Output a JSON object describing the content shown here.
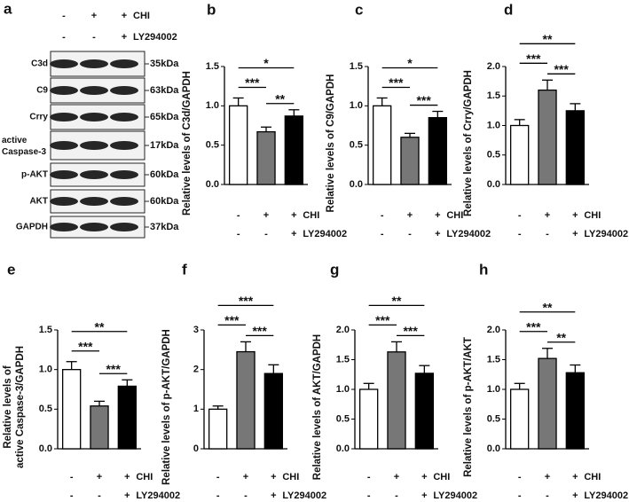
{
  "blot": {
    "letter": "a",
    "conditions": [
      {
        "name": "CHI",
        "signs": [
          "-",
          "+",
          "+"
        ]
      },
      {
        "name": "LY294002",
        "signs": [
          "-",
          "-",
          "+"
        ]
      }
    ],
    "bands": [
      {
        "label": "C3d",
        "size": "35kDa"
      },
      {
        "label": "C9",
        "size": "63kDa"
      },
      {
        "label": "Crry",
        "size": "65kDa"
      },
      {
        "label": "active Caspase-3",
        "size": "17kDa"
      },
      {
        "label": "p-AKT",
        "size": "60kDa"
      },
      {
        "label": "AKT",
        "size": "60kDa"
      },
      {
        "label": "GAPDH",
        "size": "37kDa"
      }
    ]
  },
  "chart_data": [
    {
      "type": "bar",
      "letter": "b",
      "ylabel": [
        "Relative levels of C3d/GAPDH"
      ],
      "values": [
        1.0,
        0.67,
        0.87
      ],
      "errors": [
        0.1,
        0.06,
        0.08
      ],
      "colors": [
        "#ffffff",
        "#777777",
        "#000000"
      ],
      "ylim": [
        0,
        1.5
      ],
      "yticks": [
        {
          "value": 0,
          "label": "0.0"
        },
        0.5,
        {
          "value": 1,
          "label": "1.0"
        },
        1.5
      ],
      "significance": [
        "*",
        "***",
        "**"
      ],
      "conditions": [
        {
          "name": "CHI",
          "signs": [
            "-",
            "+",
            "+"
          ]
        },
        {
          "name": "LY294002",
          "signs": [
            "-",
            "-",
            "+"
          ]
        }
      ]
    },
    {
      "type": "bar",
      "letter": "c",
      "ylabel": [
        "Relative levels of C9/GAPDH"
      ],
      "values": [
        1.0,
        0.6,
        0.85
      ],
      "errors": [
        0.1,
        0.05,
        0.08
      ],
      "colors": [
        "#ffffff",
        "#777777",
        "#000000"
      ],
      "ylim": [
        0,
        1.5
      ],
      "yticks": [
        {
          "value": 0,
          "label": "0.0"
        },
        0.5,
        {
          "value": 1,
          "label": "1.0"
        },
        1.5
      ],
      "significance": [
        "*",
        "***",
        "***"
      ],
      "conditions": [
        {
          "name": "CHI",
          "signs": [
            "-",
            "+",
            "+"
          ]
        },
        {
          "name": "LY294002",
          "signs": [
            "-",
            "-",
            "+"
          ]
        }
      ]
    },
    {
      "type": "bar",
      "letter": "d",
      "ylabel": [
        "Relative levels of Crry/GAPDH"
      ],
      "values": [
        1.0,
        1.6,
        1.25
      ],
      "errors": [
        0.1,
        0.17,
        0.12
      ],
      "colors": [
        "#ffffff",
        "#777777",
        "#000000"
      ],
      "ylim": [
        0,
        2
      ],
      "yticks": [
        {
          "value": 0,
          "label": "0.0"
        },
        0.5,
        {
          "value": 1,
          "label": "1.0"
        },
        1.5,
        {
          "value": 2,
          "label": "2.0"
        }
      ],
      "significance": [
        "**",
        "***",
        "***"
      ],
      "conditions": [
        {
          "name": "CHI",
          "signs": [
            "-",
            "+",
            "+"
          ]
        },
        {
          "name": "LY294002",
          "signs": [
            "-",
            "-",
            "+"
          ]
        }
      ]
    },
    {
      "type": "bar",
      "letter": "e",
      "ylabel": [
        "Relative levels of",
        "active Caspase-3/GAPDH"
      ],
      "values": [
        1.0,
        0.54,
        0.79
      ],
      "errors": [
        0.1,
        0.06,
        0.08
      ],
      "colors": [
        "#ffffff",
        "#777777",
        "#000000"
      ],
      "ylim": [
        0,
        1.5
      ],
      "yticks": [
        {
          "value": 0,
          "label": "0.0"
        },
        0.5,
        {
          "value": 1,
          "label": "1.0"
        },
        1.5
      ],
      "significance": [
        "**",
        "***",
        "***"
      ],
      "conditions": [
        {
          "name": "CHI",
          "signs": [
            "-",
            "+",
            "+"
          ]
        },
        {
          "name": "LY294002",
          "signs": [
            "-",
            "-",
            "+"
          ]
        }
      ]
    },
    {
      "type": "bar",
      "letter": "f",
      "ylabel": [
        "Relative levels of p-AKT/GAPDH"
      ],
      "values": [
        1.0,
        2.45,
        1.9
      ],
      "errors": [
        0.08,
        0.25,
        0.22
      ],
      "colors": [
        "#ffffff",
        "#777777",
        "#000000"
      ],
      "ylim": [
        0,
        3
      ],
      "yticks": [
        0,
        1,
        2,
        3
      ],
      "significance": [
        "***",
        "***",
        "***"
      ],
      "conditions": [
        {
          "name": "CHI",
          "signs": [
            "-",
            "+",
            "+"
          ]
        },
        {
          "name": "LY294002",
          "signs": [
            "-",
            "-",
            "+"
          ]
        }
      ]
    },
    {
      "type": "bar",
      "letter": "g",
      "ylabel": [
        "Relative levels of AKT/GAPDH"
      ],
      "values": [
        1.0,
        1.63,
        1.27
      ],
      "errors": [
        0.1,
        0.17,
        0.13
      ],
      "colors": [
        "#ffffff",
        "#777777",
        "#000000"
      ],
      "ylim": [
        0,
        2
      ],
      "yticks": [
        {
          "value": 0,
          "label": "0.0"
        },
        0.5,
        {
          "value": 1,
          "label": "1.0"
        },
        1.5,
        {
          "value": 2,
          "label": "2.0"
        }
      ],
      "significance": [
        "**",
        "***",
        "***"
      ],
      "conditions": [
        {
          "name": "CHI",
          "signs": [
            "-",
            "+",
            "+"
          ]
        },
        {
          "name": "LY294002",
          "signs": [
            "-",
            "-",
            "+"
          ]
        }
      ]
    },
    {
      "type": "bar",
      "letter": "h",
      "ylabel": [
        "Relative levels of p-AKT/AKT"
      ],
      "values": [
        1.0,
        1.52,
        1.28
      ],
      "errors": [
        0.1,
        0.17,
        0.13
      ],
      "colors": [
        "#ffffff",
        "#777777",
        "#000000"
      ],
      "ylim": [
        0,
        2
      ],
      "yticks": [
        {
          "value": 0,
          "label": "0.0"
        },
        0.5,
        {
          "value": 1,
          "label": "1.0"
        },
        1.5,
        {
          "value": 2,
          "label": "2.0"
        }
      ],
      "significance": [
        "**",
        "***",
        "**"
      ],
      "conditions": [
        {
          "name": "CHI",
          "signs": [
            "-",
            "+",
            "+"
          ]
        },
        {
          "name": "LY294002",
          "signs": [
            "-",
            "-",
            "+"
          ]
        }
      ]
    }
  ]
}
